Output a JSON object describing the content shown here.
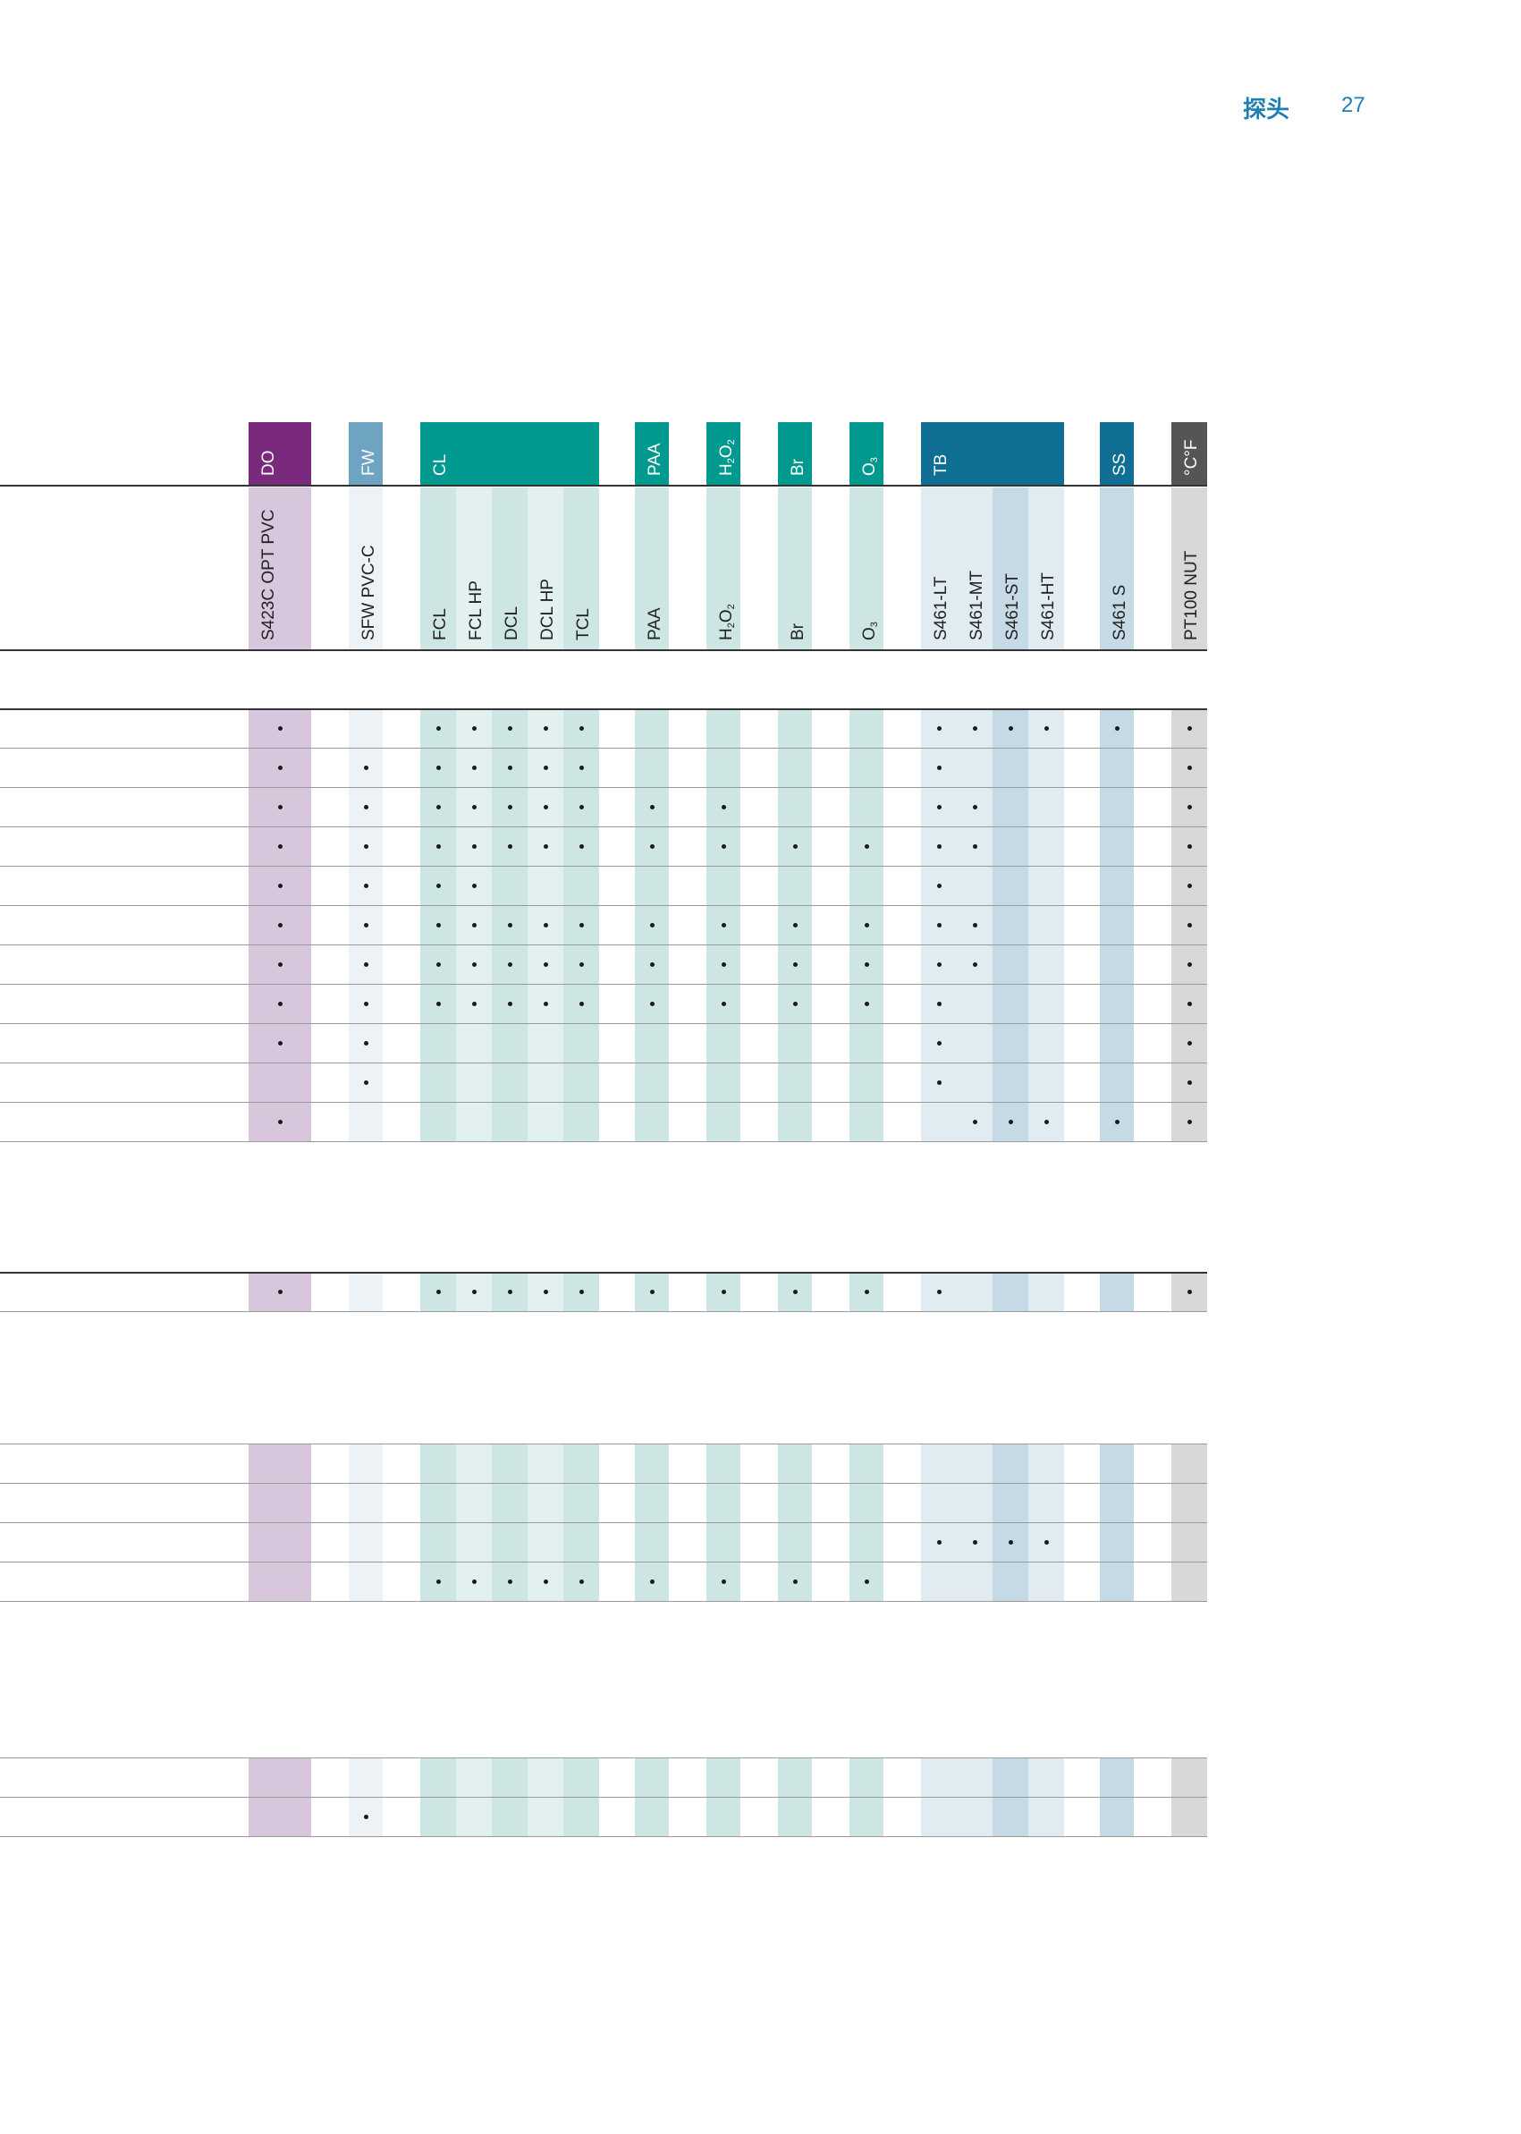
{
  "header": {
    "title": "探头",
    "page_number": "27"
  },
  "groups": [
    {
      "id": "DO",
      "label": "DO",
      "color": "#7a2a7c"
    },
    {
      "id": "FW",
      "label": "FW",
      "color": "#6fa3c2"
    },
    {
      "id": "CL",
      "label": "CL",
      "color": "#00998f"
    },
    {
      "id": "PAA",
      "label": "PAA",
      "color": "#00998f"
    },
    {
      "id": "H2O2",
      "label": "H2O2",
      "color": "#00998f"
    },
    {
      "id": "Br",
      "label": "Br",
      "color": "#00998f"
    },
    {
      "id": "O3",
      "label": "O3",
      "color": "#00998f"
    },
    {
      "id": "TB",
      "label": "TB",
      "color": "#0e6e94"
    },
    {
      "id": "SS",
      "label": "SS",
      "color": "#0e6e94"
    },
    {
      "id": "TEMP",
      "label": "°C°F",
      "color": "#555555"
    }
  ],
  "columns": [
    {
      "label": "S423C OPT PVC",
      "group": "DO",
      "tint": "#d8c6dc"
    },
    {
      "label": "SFW PVC-C",
      "group": "FW",
      "tint": "#edf2f7"
    },
    {
      "label": "FCL",
      "group": "CL",
      "tint": "#cde5e3"
    },
    {
      "label": "FCL HP",
      "group": "CL",
      "tint": "#e2f1ef"
    },
    {
      "label": "DCL",
      "group": "CL",
      "tint": "#cde5e3"
    },
    {
      "label": "DCL HP",
      "group": "CL",
      "tint": "#e2f1ef"
    },
    {
      "label": "TCL",
      "group": "CL",
      "tint": "#cde5e3"
    },
    {
      "label": "PAA",
      "group": "PAA",
      "tint": "#cde5e3"
    },
    {
      "label": "H2O2",
      "group": "H2O2",
      "tint": "#cde5e3"
    },
    {
      "label": "Br",
      "group": "Br",
      "tint": "#cde5e3"
    },
    {
      "label": "O3",
      "group": "O3",
      "tint": "#cde5e3"
    },
    {
      "label": "S461-LT",
      "group": "TB",
      "tint": "#e0ebf2"
    },
    {
      "label": "S461-MT",
      "group": "TB",
      "tint": "#e0ebf2"
    },
    {
      "label": "S461-ST",
      "group": "TB",
      "tint": "#c6dae6"
    },
    {
      "label": "S461-HT",
      "group": "TB",
      "tint": "#e0ebf2"
    },
    {
      "label": "S461 S",
      "group": "SS",
      "tint": "#c6dae6"
    },
    {
      "label": "PT100 NUT",
      "group": "TEMP",
      "tint": "#d8d8d8"
    }
  ],
  "sections": [
    {
      "rows": [
        [
          1,
          0,
          1,
          1,
          1,
          1,
          1,
          0,
          0,
          0,
          0,
          1,
          1,
          1,
          1,
          1,
          1
        ],
        [
          1,
          1,
          1,
          1,
          1,
          1,
          1,
          0,
          0,
          0,
          0,
          1,
          0,
          0,
          0,
          0,
          1
        ],
        [
          1,
          1,
          1,
          1,
          1,
          1,
          1,
          1,
          1,
          0,
          0,
          1,
          1,
          0,
          0,
          0,
          1
        ],
        [
          1,
          1,
          1,
          1,
          1,
          1,
          1,
          1,
          1,
          1,
          1,
          1,
          1,
          0,
          0,
          0,
          1
        ],
        [
          1,
          1,
          1,
          1,
          0,
          0,
          0,
          0,
          0,
          0,
          0,
          1,
          0,
          0,
          0,
          0,
          1
        ],
        [
          1,
          1,
          1,
          1,
          1,
          1,
          1,
          1,
          1,
          1,
          1,
          1,
          1,
          0,
          0,
          0,
          1
        ],
        [
          1,
          1,
          1,
          1,
          1,
          1,
          1,
          1,
          1,
          1,
          1,
          1,
          1,
          0,
          0,
          0,
          1
        ],
        [
          1,
          1,
          1,
          1,
          1,
          1,
          1,
          1,
          1,
          1,
          1,
          1,
          0,
          0,
          0,
          0,
          1
        ],
        [
          1,
          1,
          0,
          0,
          0,
          0,
          0,
          0,
          0,
          0,
          0,
          1,
          0,
          0,
          0,
          0,
          1
        ],
        [
          0,
          1,
          0,
          0,
          0,
          0,
          0,
          0,
          0,
          0,
          0,
          1,
          0,
          0,
          0,
          0,
          1
        ],
        [
          1,
          0,
          0,
          0,
          0,
          0,
          0,
          0,
          0,
          0,
          0,
          0,
          1,
          1,
          1,
          1,
          1
        ]
      ]
    },
    {
      "rows": [
        [
          1,
          0,
          1,
          1,
          1,
          1,
          1,
          1,
          1,
          1,
          1,
          1,
          0,
          0,
          0,
          0,
          1
        ]
      ]
    },
    {
      "rows": [
        [
          0,
          0,
          0,
          0,
          0,
          0,
          0,
          0,
          0,
          0,
          0,
          0,
          0,
          0,
          0,
          0,
          0
        ],
        [
          0,
          0,
          0,
          0,
          0,
          0,
          0,
          0,
          0,
          0,
          0,
          0,
          0,
          0,
          0,
          0,
          0
        ],
        [
          0,
          0,
          0,
          0,
          0,
          0,
          0,
          0,
          0,
          0,
          0,
          1,
          1,
          1,
          1,
          0,
          0
        ],
        [
          0,
          0,
          1,
          1,
          1,
          1,
          1,
          1,
          1,
          1,
          1,
          0,
          0,
          0,
          0,
          0,
          0
        ]
      ]
    },
    {
      "rows": [
        [
          0,
          0,
          0,
          0,
          0,
          0,
          0,
          0,
          0,
          0,
          0,
          0,
          0,
          0,
          0,
          0,
          0
        ],
        [
          0,
          1,
          0,
          0,
          0,
          0,
          0,
          0,
          0,
          0,
          0,
          0,
          0,
          0,
          0,
          0,
          0
        ]
      ]
    }
  ]
}
